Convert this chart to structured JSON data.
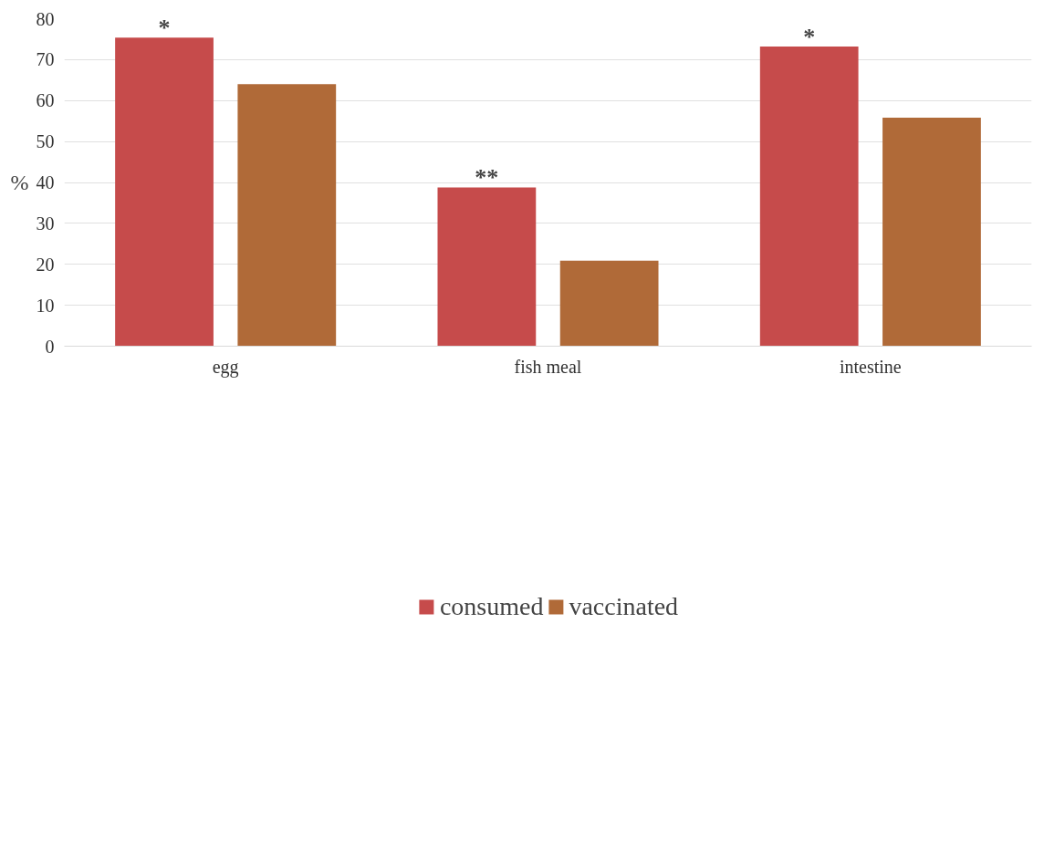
{
  "chart_data": {
    "type": "bar",
    "categories": [
      "egg",
      "fish meal",
      "intestine"
    ],
    "ylabel": "%",
    "series": [
      {
        "name": "consumed",
        "color": "#c64b4b",
        "values": [
          75.4,
          38.8,
          73.2
        ]
      },
      {
        "name": "vaccinated",
        "color": "#b06a38",
        "values": [
          64,
          20.9,
          55.8
        ]
      }
    ],
    "ylim": [
      0,
      80
    ],
    "yticks": [
      0,
      10,
      20,
      30,
      40,
      50,
      60,
      70,
      80
    ],
    "grid": "y",
    "legend": "bottom",
    "annotations": [
      "*",
      "**",
      "*"
    ]
  }
}
